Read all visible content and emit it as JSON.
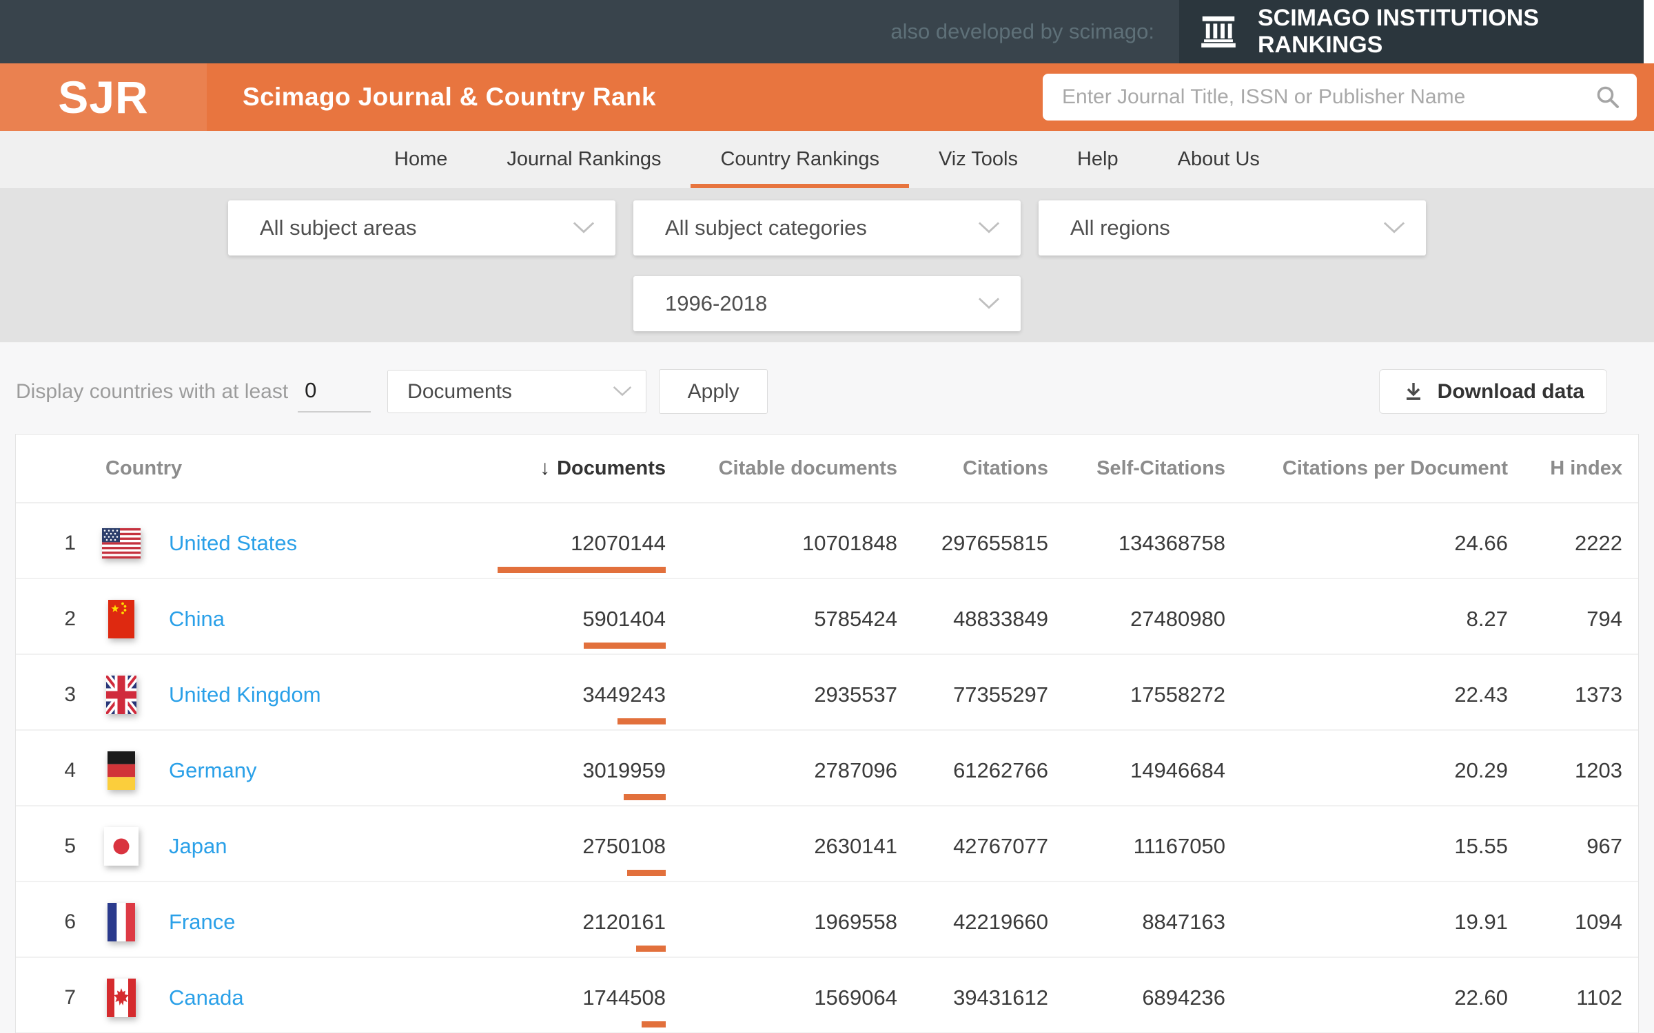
{
  "topbar": {
    "tagline": "also developed by scimago:",
    "sir_title": "SCIMAGO INSTITUTIONS RANKINGS"
  },
  "brand": {
    "logo_text": "SJR",
    "site_title": "Scimago Journal & Country Rank",
    "search_placeholder": "Enter Journal Title, ISSN or Publisher Name"
  },
  "nav": {
    "items": [
      {
        "label": "Home",
        "active": false
      },
      {
        "label": "Journal Rankings",
        "active": false
      },
      {
        "label": "Country Rankings",
        "active": true
      },
      {
        "label": "Viz Tools",
        "active": false
      },
      {
        "label": "Help",
        "active": false
      },
      {
        "label": "About Us",
        "active": false
      }
    ]
  },
  "filters": {
    "subject_area": "All subject areas",
    "subject_category": "All subject categories",
    "region": "All regions",
    "year_range": "1996-2018"
  },
  "controls": {
    "display_label": "Display countries with at least",
    "min_value": "0",
    "metric": "Documents",
    "apply_label": "Apply",
    "download_label": "Download data"
  },
  "table": {
    "columns": [
      "Country",
      "Documents",
      "Citable documents",
      "Citations",
      "Self-Citations",
      "Citations per Document",
      "H index"
    ],
    "sorted_by": "Documents",
    "rows": [
      {
        "rank": "1",
        "flag": "us",
        "country": "United States",
        "documents": "12070144",
        "citable_documents": "10701848",
        "citations": "297655815",
        "self_citations": "134368758",
        "citations_per_document": "24.66",
        "h_index": "2222"
      },
      {
        "rank": "2",
        "flag": "cn",
        "country": "China",
        "documents": "5901404",
        "citable_documents": "5785424",
        "citations": "48833849",
        "self_citations": "27480980",
        "citations_per_document": "8.27",
        "h_index": "794"
      },
      {
        "rank": "3",
        "flag": "gb",
        "country": "United Kingdom",
        "documents": "3449243",
        "citable_documents": "2935537",
        "citations": "77355297",
        "self_citations": "17558272",
        "citations_per_document": "22.43",
        "h_index": "1373"
      },
      {
        "rank": "4",
        "flag": "de",
        "country": "Germany",
        "documents": "3019959",
        "citable_documents": "2787096",
        "citations": "61262766",
        "self_citations": "14946684",
        "citations_per_document": "20.29",
        "h_index": "1203"
      },
      {
        "rank": "5",
        "flag": "jp",
        "country": "Japan",
        "documents": "2750108",
        "citable_documents": "2630141",
        "citations": "42767077",
        "self_citations": "11167050",
        "citations_per_document": "15.55",
        "h_index": "967"
      },
      {
        "rank": "6",
        "flag": "fr",
        "country": "France",
        "documents": "2120161",
        "citable_documents": "1969558",
        "citations": "42219660",
        "self_citations": "8847163",
        "citations_per_document": "19.91",
        "h_index": "1094"
      },
      {
        "rank": "7",
        "flag": "ca",
        "country": "Canada",
        "documents": "1744508",
        "citable_documents": "1569064",
        "citations": "39431612",
        "self_citations": "6894236",
        "citations_per_document": "22.60",
        "h_index": "1102"
      }
    ]
  },
  "colors": {
    "accent_orange": "#E7743E",
    "link_blue": "#2AA0E8",
    "topbar_dark": "#39444C",
    "topbar_darker": "#2B363D"
  }
}
